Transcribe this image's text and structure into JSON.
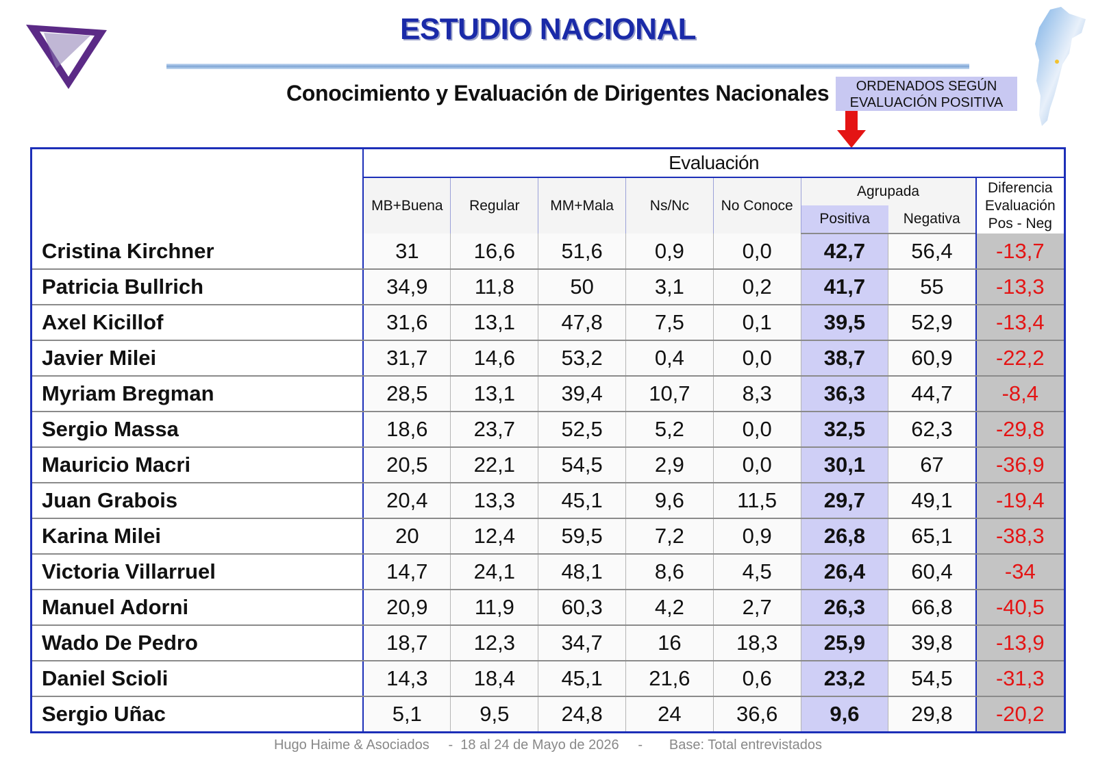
{
  "header": {
    "title": "ESTUDIO NACIONAL",
    "subtitle": "Conocimiento y Evaluación de Dirigentes Nacionales",
    "sort_note_line1": "ORDENADOS SEGÚN",
    "sort_note_line2": "EVALUACIÓN  POSITIVA"
  },
  "colors": {
    "title": "#1a2aa8",
    "table_border": "#1c2fb8",
    "positive_col_bg": "#cfcff6",
    "difference_text": "#e41414",
    "difference_bg": "#c4c4c4",
    "arrow": "#e41414",
    "logo": "#5b2a86"
  },
  "icons": [
    "triangle-logo-icon",
    "argentina-map-icon",
    "down-arrow-icon"
  ],
  "chart_data": {
    "type": "table",
    "group_header": "Evaluación",
    "columns": [
      "MB+Buena",
      "Regular",
      "MM+Mala",
      "Ns/Nc",
      "No Conoce"
    ],
    "agrupada_header": "Agrupada",
    "agrupada_columns": [
      "Positiva",
      "Negativa"
    ],
    "difference_header_lines": [
      "Diferencia",
      "Evaluación",
      "Pos - Neg"
    ],
    "rows": [
      {
        "name": "Cristina Kirchner",
        "values": [
          "31",
          "16,6",
          "51,6",
          "0,9",
          "0,0"
        ],
        "positiva": "42,7",
        "negativa": "56,4",
        "diferencia": "-13,7"
      },
      {
        "name": "Patricia Bullrich",
        "values": [
          "34,9",
          "11,8",
          "50",
          "3,1",
          "0,2"
        ],
        "positiva": "41,7",
        "negativa": "55",
        "diferencia": "-13,3"
      },
      {
        "name": "Axel Kicillof",
        "values": [
          "31,6",
          "13,1",
          "47,8",
          "7,5",
          "0,1"
        ],
        "positiva": "39,5",
        "negativa": "52,9",
        "diferencia": "-13,4"
      },
      {
        "name": "Javier Milei",
        "values": [
          "31,7",
          "14,6",
          "53,2",
          "0,4",
          "0,0"
        ],
        "positiva": "38,7",
        "negativa": "60,9",
        "diferencia": "-22,2"
      },
      {
        "name": "Myriam Bregman",
        "values": [
          "28,5",
          "13,1",
          "39,4",
          "10,7",
          "8,3"
        ],
        "positiva": "36,3",
        "negativa": "44,7",
        "diferencia": "-8,4"
      },
      {
        "name": "Sergio Massa",
        "values": [
          "18,6",
          "23,7",
          "52,5",
          "5,2",
          "0,0"
        ],
        "positiva": "32,5",
        "negativa": "62,3",
        "diferencia": "-29,8"
      },
      {
        "name": "Mauricio Macri",
        "values": [
          "20,5",
          "22,1",
          "54,5",
          "2,9",
          "0,0"
        ],
        "positiva": "30,1",
        "negativa": "67",
        "diferencia": "-36,9"
      },
      {
        "name": "Juan Grabois",
        "values": [
          "20,4",
          "13,3",
          "45,1",
          "9,6",
          "11,5"
        ],
        "positiva": "29,7",
        "negativa": "49,1",
        "diferencia": "-19,4"
      },
      {
        "name": "Karina Milei",
        "values": [
          "20",
          "12,4",
          "59,5",
          "7,2",
          "0,9"
        ],
        "positiva": "26,8",
        "negativa": "65,1",
        "diferencia": "-38,3"
      },
      {
        "name": "Victoria Villarruel",
        "values": [
          "14,7",
          "24,1",
          "48,1",
          "8,6",
          "4,5"
        ],
        "positiva": "26,4",
        "negativa": "60,4",
        "diferencia": "-34"
      },
      {
        "name": "Manuel Adorni",
        "values": [
          "20,9",
          "11,9",
          "60,3",
          "4,2",
          "2,7"
        ],
        "positiva": "26,3",
        "negativa": "66,8",
        "diferencia": "-40,5"
      },
      {
        "name": "Wado De Pedro",
        "values": [
          "18,7",
          "12,3",
          "34,7",
          "16",
          "18,3"
        ],
        "positiva": "25,9",
        "negativa": "39,8",
        "diferencia": "-13,9"
      },
      {
        "name": "Daniel Scioli",
        "values": [
          "14,3",
          "18,4",
          "45,1",
          "21,6",
          "0,6"
        ],
        "positiva": "23,2",
        "negativa": "54,5",
        "diferencia": "-31,3"
      },
      {
        "name": "Sergio Uñac",
        "values": [
          "5,1",
          "9,5",
          "24,8",
          "24",
          "36,6"
        ],
        "positiva": "9,6",
        "negativa": "29,8",
        "diferencia": "-20,2"
      }
    ]
  },
  "footer": {
    "text": "Hugo Haime & Asociados     -  18 al 24 de Mayo de 2026     -       Base: Total entrevistados"
  }
}
